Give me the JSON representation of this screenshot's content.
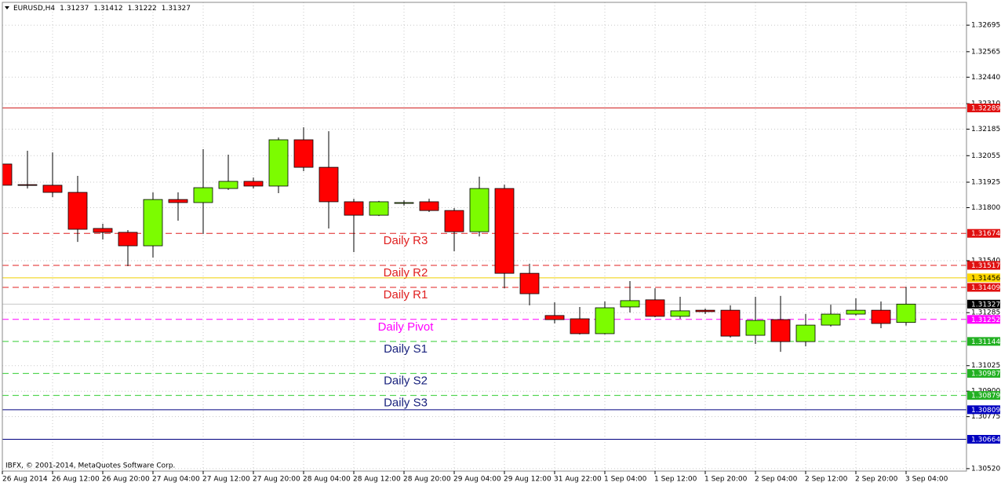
{
  "chart_data": {
    "type": "candlestick",
    "title": "EURUSD,H4",
    "footer": "IBFX, © 2001-2014, MetaQuotes Software Corp.",
    "categories": [
      "26 Aug 2014",
      null,
      "26 Aug 12:00",
      null,
      "26 Aug 20:00",
      null,
      "27 Aug 04:00",
      null,
      "27 Aug 12:00",
      null,
      "27 Aug 20:00",
      null,
      "28 Aug 04:00",
      null,
      "28 Aug 12:00",
      null,
      "28 Aug 20:00",
      null,
      "29 Aug 04:00",
      null,
      "29 Aug 12:00",
      null,
      "31 Aug 22:00",
      null,
      "1 Sep 04:00",
      null,
      "1 Sep 12:00",
      null,
      "1 Sep 20:00",
      null,
      "2 Sep 04:00",
      null,
      "2 Sep 12:00",
      null,
      "2 Sep 20:00",
      null,
      "3 Sep 04:00"
    ],
    "open": [
      1.32014,
      1.31913,
      1.3191,
      1.31875,
      1.31698,
      1.31679,
      1.31613,
      1.3184,
      1.31825,
      1.31894,
      1.31929,
      1.31906,
      1.32133,
      1.31998,
      1.31829,
      1.31763,
      1.31821,
      1.31829,
      1.31786,
      1.31682,
      1.31894,
      1.31478,
      1.31271,
      1.31255,
      1.31182,
      1.31313,
      1.31348,
      1.31267,
      1.31297,
      1.31297,
      1.31174,
      1.31251,
      1.31143,
      1.31224,
      1.31278,
      1.31297,
      1.31237
    ],
    "high": [
      1.32133,
      1.32079,
      1.32071,
      1.31956,
      1.31721,
      1.3169,
      1.31875,
      1.31875,
      1.32087,
      1.3206,
      1.31948,
      1.32144,
      1.32194,
      1.32175,
      1.31844,
      1.31833,
      1.31836,
      1.31844,
      1.31798,
      1.31952,
      1.31913,
      1.31525,
      1.31336,
      1.31313,
      1.3134,
      1.3144,
      1.31405,
      1.31363,
      1.31305,
      1.31321,
      1.31363,
      1.31367,
      1.31278,
      1.31324,
      1.31355,
      1.3134,
      1.31412
    ],
    "low": [
      1.31894,
      1.31894,
      1.31852,
      1.31632,
      1.31644,
      1.31513,
      1.31555,
      1.31736,
      1.31671,
      1.31887,
      1.31894,
      1.31871,
      1.31979,
      1.31698,
      1.31582,
      1.31759,
      1.3181,
      1.31779,
      1.31586,
      1.31659,
      1.31405,
      1.31321,
      1.31232,
      1.31178,
      1.31178,
      1.31286,
      1.31263,
      1.31255,
      1.31278,
      1.31163,
      1.31132,
      1.31093,
      1.3112,
      1.31217,
      1.31271,
      1.31209,
      1.31222
    ],
    "close": [
      1.3191,
      1.3191,
      1.31875,
      1.31694,
      1.31679,
      1.31613,
      1.3184,
      1.31825,
      1.31898,
      1.31929,
      1.31906,
      1.32133,
      1.31998,
      1.31829,
      1.31763,
      1.31829,
      1.31825,
      1.31786,
      1.31682,
      1.31894,
      1.31478,
      1.31378,
      1.31251,
      1.31182,
      1.31309,
      1.31344,
      1.31267,
      1.31294,
      1.3129,
      1.3117,
      1.31247,
      1.31143,
      1.31224,
      1.31278,
      1.31297,
      1.31232,
      1.31327
    ],
    "up_color": "#7cfc00",
    "down_color": "#ff0000",
    "ylim": [
      1.30508,
      1.32807
    ],
    "yticks": [
      1.32695,
      1.32565,
      {
        "value": 1.3244,
        "label": "1.32440"
      },
      {
        "value": 1.3231,
        "label": "1.32310"
      },
      1.32185,
      1.32055,
      1.31925,
      {
        "value": 1.318,
        "label": "1.31800"
      },
      {
        "value": 1.3154,
        "label": "1.31540"
      },
      1.31285,
      {
        "value": 1.31025,
        "label": "1.31025"
      },
      {
        "value": 1.309,
        "label": "1.30900"
      },
      1.30775,
      {
        "value": 1.3052,
        "label": "1.30520"
      }
    ],
    "grid": true,
    "levels": [
      {
        "value": 1.32289,
        "color": "#d02020",
        "style": "solid",
        "box": "#e01010"
      },
      {
        "value": 1.31674,
        "color": "#e02020",
        "style": "dashed",
        "box": "#e01010",
        "name": "Daily R3"
      },
      {
        "value": 1.31517,
        "color": "#e02020",
        "style": "dashed",
        "box": "#e01010",
        "name": "Daily R2"
      },
      {
        "value": 1.31456,
        "color": "#f0d000",
        "style": "solid",
        "box": "#ffd700"
      },
      {
        "value": 1.31409,
        "color": "#e02020",
        "style": "dashed",
        "box": "#e01010",
        "name": "Daily R1"
      },
      {
        "value": 1.31327,
        "color": "#c8c8c8",
        "style": "solid",
        "box": "#000000"
      },
      {
        "value": 1.31252,
        "color": "#ff00ff",
        "style": "dashed",
        "box": "#ff00ff",
        "name": "Daily Pivot"
      },
      {
        "value": 1.31144,
        "color": "#32cd32",
        "style": "dashed",
        "box": "#22b022",
        "name": "Daily S1",
        "name_color": "#1a237e"
      },
      {
        "value": 1.30987,
        "color": "#32cd32",
        "style": "dashed",
        "box": "#22b022",
        "name": "Daily S2",
        "name_color": "#1a237e"
      },
      {
        "value": 1.30879,
        "color": "#32cd32",
        "style": "dashed",
        "box": "#22b022",
        "name": "Daily S3",
        "name_color": "#1a237e"
      },
      {
        "value": 1.30809,
        "color": "#000080",
        "style": "solid",
        "box": "#0000c0"
      },
      {
        "value": 1.30664,
        "color": "#000080",
        "style": "solid",
        "box": "#0000c0"
      }
    ]
  }
}
